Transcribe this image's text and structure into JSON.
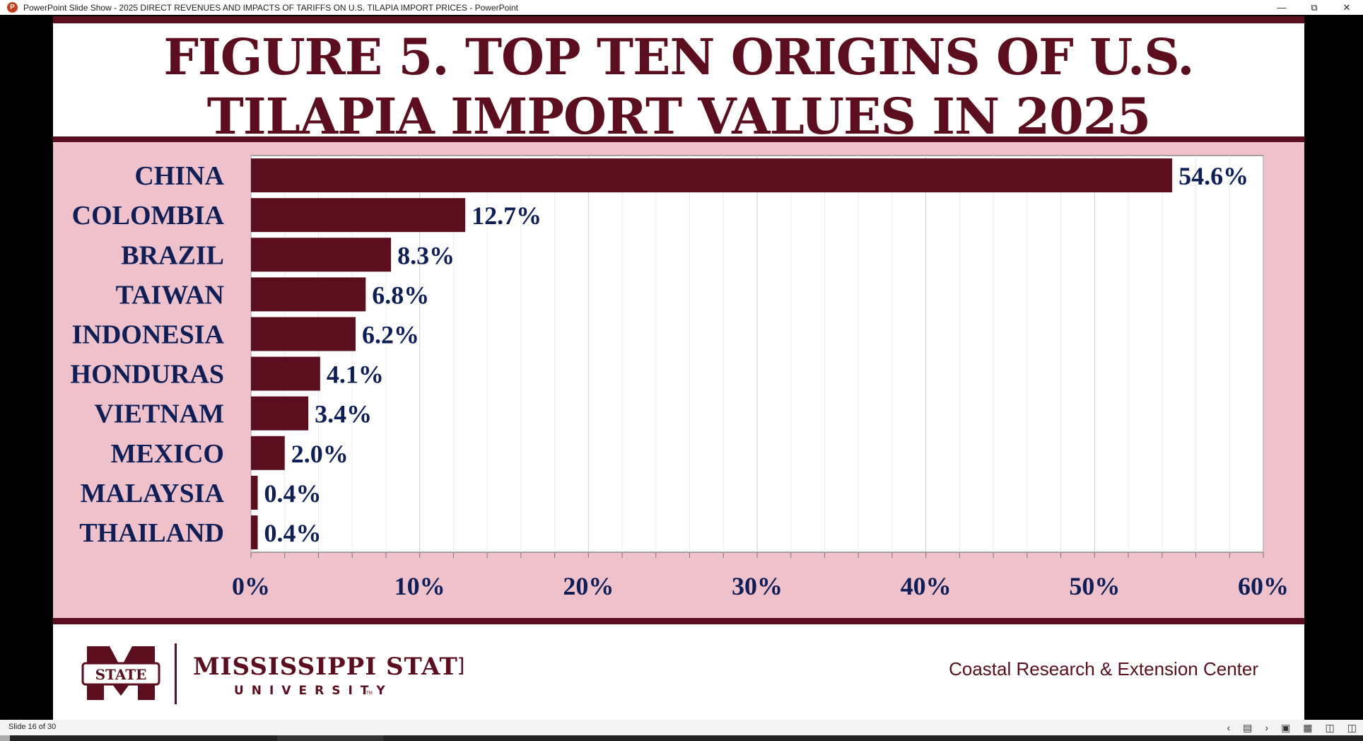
{
  "window": {
    "title": "PowerPoint Slide Show  -  2025 DIRECT REVENUES AND IMPACTS OF TARIFFS ON U.S. TILAPIA IMPORT PRICES - PowerPoint",
    "minimize_icon": "minimize-icon",
    "restore_icon": "restore-icon",
    "close_icon": "close-icon"
  },
  "slide": {
    "title_line1": "FIGURE 5. TOP TEN ORIGINS OF U.S.",
    "title_line2": "TILAPIA IMPORT VALUES IN 2025",
    "logo_mark": "STATE",
    "logo_name": "MISSISSIPPI STATE",
    "logo_sub": "UNIVERSITY",
    "logo_tm": "TM",
    "footer_text": "Coastal Research & Extension Center"
  },
  "status": {
    "slide_counter": "Slide 16 of 30"
  },
  "colors": {
    "maroon": "#5c0e1e",
    "panel_pink": "#efc1ca",
    "label_navy": "#0e1e57"
  },
  "chart_data": {
    "type": "bar",
    "orientation": "horizontal",
    "categories": [
      "CHINA",
      "COLOMBIA",
      "BRAZIL",
      "TAIWAN",
      "INDONESIA",
      "HONDURAS",
      "VIETNAM",
      "MEXICO",
      "MALAYSIA",
      "THAILAND"
    ],
    "values": [
      54.6,
      12.7,
      8.3,
      6.8,
      6.2,
      4.1,
      3.4,
      2.0,
      0.4,
      0.4
    ],
    "data_labels": [
      "54.6%",
      "12.7%",
      "8.3%",
      "6.8%",
      "6.2%",
      "4.1%",
      "3.4%",
      "2.0%",
      "0.4%",
      "0.4%"
    ],
    "xlim": [
      0,
      60
    ],
    "x_ticks": [
      0,
      10,
      20,
      30,
      40,
      50,
      60
    ],
    "x_tick_labels": [
      "0%",
      "10%",
      "20%",
      "30%",
      "40%",
      "50%",
      "60%"
    ],
    "grid": true,
    "legend": "none"
  }
}
